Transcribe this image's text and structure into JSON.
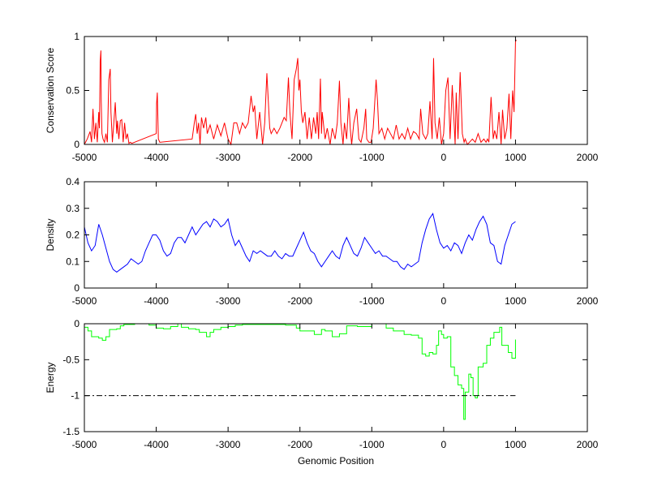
{
  "chart_data": [
    {
      "type": "line",
      "title": "",
      "xlabel": "",
      "ylabel": "Conservation Score",
      "xlim": [
        -5000,
        2000
      ],
      "ylim": [
        0,
        1
      ],
      "xticks": [
        "-5000",
        "-4000",
        "-3000",
        "-2000",
        "-1000",
        "0",
        "1000",
        "2000"
      ],
      "yticks": [
        "0",
        "0.5",
        "1"
      ],
      "ytick_values": [
        0,
        0.5,
        1
      ],
      "grid": false,
      "series": [
        {
          "name": "conservation",
          "color": "#ff0000",
          "x": [
            -5000,
            -4960,
            -4920,
            -4900,
            -4880,
            -4860,
            -4840,
            -4820,
            -4800,
            -4790,
            -4780,
            -4770,
            -4765,
            -4755,
            -4740,
            -4720,
            -4700,
            -4680,
            -4660,
            -4650,
            -4640,
            -4630,
            -4610,
            -4590,
            -4570,
            -4550,
            -4540,
            -4520,
            -4500,
            -4480,
            -4460,
            -4440,
            -4420,
            -4400,
            -4380,
            -4360,
            -4340,
            -4000,
            -3995,
            -3985,
            -3970,
            -3950,
            -3500,
            -3470,
            -3450,
            -3430,
            -3410,
            -3390,
            -3370,
            -3340,
            -3310,
            -3290,
            -3250,
            -3200,
            -3150,
            -3100,
            -3050,
            -3000,
            -2960,
            -2920,
            -2880,
            -2840,
            -2800,
            -2760,
            -2720,
            -2680,
            -2650,
            -2630,
            -2600,
            -2560,
            -2520,
            -2490,
            -2460,
            -2440,
            -2420,
            -2400,
            -2360,
            -2320,
            -2280,
            -2250,
            -2220,
            -2190,
            -2160,
            -2140,
            -2110,
            -2080,
            -2050,
            -2030,
            -2015,
            -2000,
            -1980,
            -1960,
            -1930,
            -1900,
            -1870,
            -1840,
            -1810,
            -1780,
            -1760,
            -1740,
            -1715,
            -1700,
            -1690,
            -1650,
            -1620,
            -1580,
            -1550,
            -1510,
            -1480,
            -1450,
            -1430,
            -1400,
            -1380,
            -1350,
            -1320,
            -1300,
            -1280,
            -1250,
            -1210,
            -1180,
            -1150,
            -1110,
            -1085,
            -1070,
            -1040,
            -1010,
            -980,
            -940,
            -920,
            -900,
            -860,
            -820,
            -780,
            -740,
            -700,
            -660,
            -620,
            -580,
            -540,
            -500,
            -460,
            -420,
            -380,
            -340,
            -320,
            -290,
            -250,
            -220,
            -190,
            -160,
            -140,
            -120,
            -90,
            -60,
            -30,
            0,
            30,
            60,
            90,
            120,
            160,
            175,
            200,
            230,
            260,
            285,
            300,
            330,
            360,
            400,
            440,
            480,
            520,
            560,
            590,
            610,
            630,
            660,
            690,
            710,
            740,
            770,
            800,
            820,
            850,
            880,
            910,
            935,
            960,
            980,
            1000,
            1010
          ],
          "y": [
            0,
            0.05,
            0.12,
            0.02,
            0.33,
            0.05,
            0.2,
            0.02,
            0.3,
            0.15,
            0.77,
            0.87,
            0.4,
            0.1,
            0.05,
            0.02,
            0.1,
            0.02,
            0.6,
            0.65,
            0.7,
            0.3,
            0.02,
            0.2,
            0.39,
            0.1,
            0.22,
            0.05,
            0.22,
            0.23,
            0.02,
            0.2,
            0.05,
            0.1,
            0.01,
            0.02,
            0.01,
            0.1,
            0.38,
            0.48,
            0.05,
            0.02,
            0.05,
            0.2,
            0.28,
            0.1,
            0.2,
            0,
            0.25,
            0.15,
            0.25,
            0.1,
            0.18,
            0.05,
            0.18,
            0.08,
            0.2,
            0.05,
            0,
            0.2,
            0.2,
            0.1,
            0.2,
            0.15,
            0.2,
            0.45,
            0.3,
            0.36,
            0.05,
            0.3,
            0,
            0.2,
            0.66,
            0.4,
            0.15,
            0.1,
            0.15,
            0.1,
            0.15,
            0.2,
            0.25,
            0.22,
            0.62,
            0.3,
            0.05,
            0.6,
            0.7,
            0.8,
            0.5,
            0.6,
            0.3,
            0.2,
            0.3,
            0.05,
            0.25,
            0.05,
            0.25,
            0.1,
            0.3,
            0.05,
            0.61,
            0.1,
            0.3,
            0.05,
            0.15,
            0,
            0.15,
            0.05,
            0.2,
            0.59,
            0.2,
            0,
            0.2,
            0.05,
            0.43,
            0.15,
            0,
            0.2,
            0.33,
            0.05,
            0.02,
            0.15,
            0.33,
            0.05,
            0.02,
            0.02,
            0.15,
            0.6,
            0.4,
            0.1,
            0.15,
            0.05,
            0.15,
            0.1,
            0.05,
            0.18,
            0.05,
            0.1,
            0.05,
            0.15,
            0.05,
            0.12,
            0.1,
            0.05,
            0.33,
            0.1,
            0.05,
            0.1,
            0.4,
            0.05,
            0.8,
            0.2,
            0.05,
            0.25,
            0,
            0.1,
            0.5,
            0.62,
            0.05,
            0.55,
            0,
            0.48,
            0.05,
            0.67,
            0.1,
            0.02,
            0.05,
            0,
            0.02,
            0.05,
            0.02,
            0.1,
            0.02,
            0.05,
            0.02,
            0.05,
            0.02,
            0.44,
            0.05,
            0.13,
            0.05,
            0.3,
            0,
            0.32,
            0.05,
            0.15,
            0.47,
            0.05,
            0.5,
            0.3,
            0.95,
            0.97
          ]
        }
      ]
    },
    {
      "type": "line",
      "title": "",
      "xlabel": "",
      "ylabel": "Density",
      "xlim": [
        -5000,
        2000
      ],
      "ylim": [
        0,
        0.4
      ],
      "xticks": [
        "-5000",
        "-4000",
        "-3000",
        "-2000",
        "-1000",
        "0",
        "1000",
        "2000"
      ],
      "yticks": [
        "0",
        "0.1",
        "0.2",
        "0.3",
        "0.4"
      ],
      "ytick_values": [
        0,
        0.1,
        0.2,
        0.3,
        0.4
      ],
      "grid": false,
      "series": [
        {
          "name": "density",
          "color": "#0000ff",
          "x_start": -5000,
          "x_step": 50,
          "y": [
            0.23,
            0.17,
            0.14,
            0.16,
            0.24,
            0.2,
            0.15,
            0.1,
            0.07,
            0.06,
            0.07,
            0.08,
            0.09,
            0.11,
            0.1,
            0.09,
            0.1,
            0.14,
            0.17,
            0.2,
            0.2,
            0.18,
            0.14,
            0.12,
            0.13,
            0.17,
            0.19,
            0.19,
            0.17,
            0.2,
            0.23,
            0.2,
            0.22,
            0.24,
            0.25,
            0.23,
            0.26,
            0.25,
            0.23,
            0.24,
            0.26,
            0.2,
            0.16,
            0.18,
            0.15,
            0.12,
            0.1,
            0.14,
            0.13,
            0.14,
            0.13,
            0.12,
            0.12,
            0.14,
            0.12,
            0.11,
            0.13,
            0.12,
            0.12,
            0.15,
            0.18,
            0.21,
            0.17,
            0.14,
            0.13,
            0.1,
            0.08,
            0.1,
            0.12,
            0.14,
            0.12,
            0.11,
            0.16,
            0.19,
            0.16,
            0.13,
            0.12,
            0.15,
            0.19,
            0.17,
            0.15,
            0.13,
            0.14,
            0.12,
            0.12,
            0.11,
            0.1,
            0.1,
            0.08,
            0.07,
            0.09,
            0.08,
            0.09,
            0.1,
            0.17,
            0.22,
            0.26,
            0.28,
            0.22,
            0.17,
            0.15,
            0.16,
            0.14,
            0.17,
            0.16,
            0.13,
            0.17,
            0.2,
            0.18,
            0.22,
            0.25,
            0.27,
            0.24,
            0.17,
            0.16,
            0.1,
            0.09,
            0.16,
            0.2,
            0.24,
            0.25
          ]
        }
      ]
    },
    {
      "type": "line",
      "title": "",
      "xlabel": "Genomic Position",
      "ylabel": "Energy",
      "xlim": [
        -5000,
        2000
      ],
      "ylim": [
        -1.5,
        0
      ],
      "xticks": [
        "-5000",
        "-4000",
        "-3000",
        "-2000",
        "-1000",
        "0",
        "1000",
        "2000"
      ],
      "yticks": [
        "-1.5",
        "-1",
        "-0.5",
        "0"
      ],
      "ytick_values": [
        -1.5,
        -1,
        -0.5,
        0
      ],
      "grid": false,
      "series": [
        {
          "name": "energy",
          "color": "#00ff00",
          "style": "stairs",
          "x": [
            -5000,
            -4950,
            -4900,
            -4800,
            -4750,
            -4700,
            -4650,
            -4550,
            -4500,
            -4450,
            -4300,
            -4100,
            -4000,
            -3900,
            -3800,
            -3700,
            -3650,
            -3550,
            -3450,
            -3400,
            -3300,
            -3250,
            -3200,
            -3100,
            -3000,
            -2900,
            -2800,
            -2500,
            -2200,
            -2050,
            -2000,
            -1900,
            -1800,
            -1700,
            -1650,
            -1550,
            -1450,
            -1350,
            -1200,
            -1000,
            -800,
            -700,
            -550,
            -450,
            -350,
            -300,
            -250,
            -200,
            -150,
            -100,
            -70,
            -30,
            0,
            50,
            100,
            150,
            200,
            250,
            280,
            300,
            350,
            380,
            410,
            440,
            470,
            480,
            550,
            600,
            650,
            700,
            780,
            810,
            900,
            950,
            990,
            1000
          ],
          "y": [
            -0.05,
            -0.1,
            -0.18,
            -0.2,
            -0.23,
            -0.18,
            -0.08,
            -0.07,
            -0.03,
            -0.01,
            0,
            -0.02,
            -0.06,
            -0.07,
            -0.04,
            0,
            -0.05,
            -0.07,
            -0.08,
            -0.12,
            -0.18,
            -0.12,
            -0.08,
            -0.05,
            -0.04,
            -0.02,
            -0.01,
            -0.01,
            -0.02,
            -0.06,
            -0.1,
            -0.1,
            -0.15,
            -0.08,
            -0.1,
            -0.18,
            -0.14,
            -0.03,
            -0.04,
            0,
            -0.06,
            -0.1,
            -0.15,
            -0.16,
            -0.2,
            -0.42,
            -0.45,
            -0.4,
            -0.42,
            -0.3,
            -0.1,
            -0.15,
            -0.2,
            -0.18,
            -0.6,
            -0.72,
            -0.85,
            -0.9,
            -1.33,
            -0.95,
            -0.7,
            -0.75,
            -1.0,
            -1.03,
            -1.0,
            -0.6,
            -0.55,
            -0.3,
            -0.2,
            -0.12,
            -0.05,
            -0.3,
            -0.4,
            -0.48,
            -0.48,
            -0.22
          ]
        },
        {
          "name": "threshold",
          "color": "#000000",
          "style": "dash-dot",
          "x": [
            -5000,
            1000
          ],
          "y": [
            -1,
            -1
          ]
        }
      ]
    }
  ]
}
